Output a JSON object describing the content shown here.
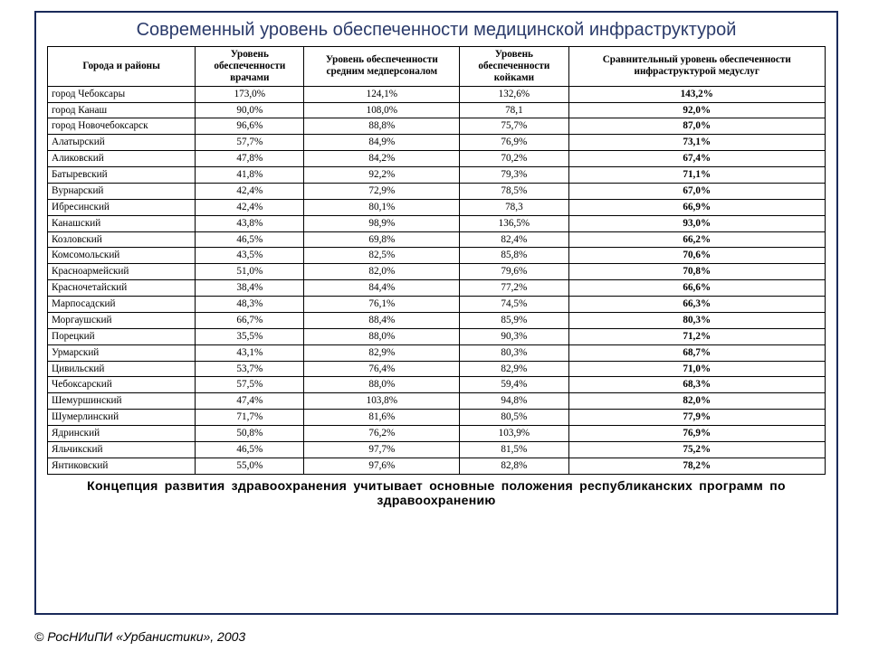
{
  "title": "Современный уровень обеспеченности медицинской инфраструктурой",
  "subtitle": "Концепция развития здравоохранения учитывает основные положения республиканских программ по здравоохранению",
  "copyright": "© РосНИиПИ «Урбанистики», 2003",
  "table": {
    "type": "table",
    "background_color": "#ffffff",
    "border_color": "#000000",
    "header_fontsize": 11,
    "cell_fontsize": 11,
    "col_widths_pct": [
      19,
      14,
      20,
      14,
      33
    ],
    "columns": [
      "Города и районы",
      "Уровень обеспеченности врачами",
      "Уровень обеспеченности средним медперсоналом",
      "Уровень обеспеченности койками",
      "Сравнительный уровень обеспеченности инфраструктурой медуслуг"
    ],
    "rows": [
      [
        "город Чебоксары",
        "173,0%",
        "124,1%",
        "132,6%",
        "143,2%"
      ],
      [
        "город Канаш",
        "90,0%",
        "108,0%",
        "78,1",
        "92,0%"
      ],
      [
        "город Новочебоксарск",
        "96,6%",
        "88,8%",
        "75,7%",
        "87,0%"
      ],
      [
        "Алатырский",
        "57,7%",
        "84,9%",
        "76,9%",
        "73,1%"
      ],
      [
        "Аликовский",
        "47,8%",
        "84,2%",
        "70,2%",
        "67,4%"
      ],
      [
        "Батыревский",
        "41,8%",
        "92,2%",
        "79,3%",
        "71,1%"
      ],
      [
        "Вурнарский",
        "42,4%",
        "72,9%",
        "78,5%",
        "67,0%"
      ],
      [
        "Ибресинский",
        "42,4%",
        "80,1%",
        "78,3",
        "66,9%"
      ],
      [
        "Канашский",
        "43,8%",
        "98,9%",
        "136,5%",
        "93,0%"
      ],
      [
        "Козловский",
        "46,5%",
        "69,8%",
        "82,4%",
        "66,2%"
      ],
      [
        "Комсомольский",
        "43,5%",
        "82,5%",
        "85,8%",
        "70,6%"
      ],
      [
        "Красноармейский",
        "51,0%",
        "82,0%",
        "79,6%",
        "70,8%"
      ],
      [
        "Красночетайский",
        "38,4%",
        "84,4%",
        "77,2%",
        "66,6%"
      ],
      [
        "Марпосадский",
        "48,3%",
        "76,1%",
        "74,5%",
        "66,3%"
      ],
      [
        "Моргаушский",
        "66,7%",
        "88,4%",
        "85,9%",
        "80,3%"
      ],
      [
        "Порецкий",
        "35,5%",
        "88,0%",
        "90,3%",
        "71,2%"
      ],
      [
        "Урмарский",
        "43,1%",
        "82,9%",
        "80,3%",
        "68,7%"
      ],
      [
        "Цивильский",
        "53,7%",
        "76,4%",
        "82,9%",
        "71,0%"
      ],
      [
        "Чебоксарский",
        "57,5%",
        "88,0%",
        "59,4%",
        "68,3%"
      ],
      [
        "Шемуршинский",
        "47,4%",
        "103,8%",
        "94,8%",
        "82,0%"
      ],
      [
        "Шумерлинский",
        "71,7%",
        "81,6%",
        "80,5%",
        "77,9%"
      ],
      [
        "Ядринский",
        "50,8%",
        "76,2%",
        "103,9%",
        "76,9%"
      ],
      [
        "Яльчикский",
        "46,5%",
        "97,7%",
        "81,5%",
        "75,2%"
      ],
      [
        "Янтиковский",
        "55,0%",
        "97,6%",
        "82,8%",
        "78,2%"
      ]
    ]
  },
  "colors": {
    "frame_border": "#1a2a5a",
    "title_color": "#2a3a6a",
    "text_color": "#000000",
    "background": "#ffffff"
  }
}
